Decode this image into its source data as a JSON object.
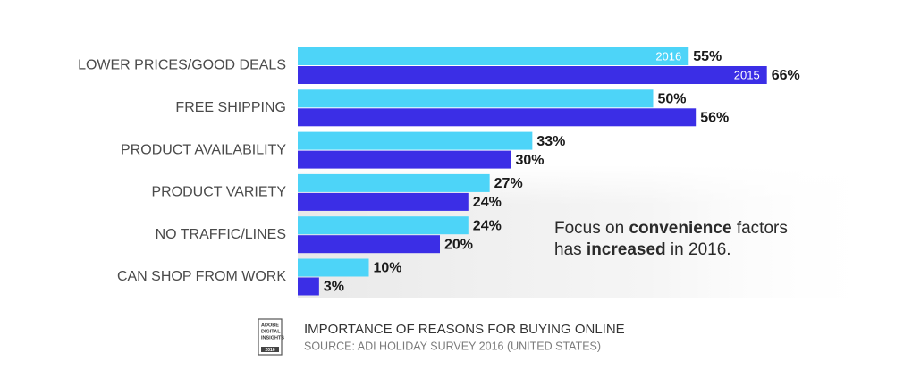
{
  "chart_data": {
    "type": "bar",
    "orientation": "horizontal",
    "categories": [
      "LOWER PRICES/GOOD DEALS",
      "FREE SHIPPING",
      "PRODUCT AVAILABILITY",
      "PRODUCT VARIETY",
      "NO TRAFFIC/LINES",
      "CAN SHOP FROM WORK"
    ],
    "series": [
      {
        "name": "2016",
        "color": "#4dd4f8",
        "values": [
          55,
          50,
          33,
          27,
          24,
          10
        ],
        "value_labels": [
          "55%",
          "50%",
          "33%",
          "27%",
          "24%",
          "10%"
        ]
      },
      {
        "name": "2015",
        "color": "#3b2ee6",
        "values": [
          66,
          56,
          30,
          24,
          20,
          3
        ],
        "value_labels": [
          "66%",
          "56%",
          "30%",
          "24%",
          "20%",
          "3%"
        ]
      }
    ],
    "annotation": [
      [
        "Focus on ",
        "convenience",
        " factors"
      ],
      [
        "has ",
        "increased",
        " in 2016."
      ]
    ],
    "title": "IMPORTANCE OF REASONS FOR BUYING ONLINE",
    "source": "SOURCE: ADI HOLIDAY SURVEY 2016 (UNITED STATES)",
    "badge": {
      "lines": [
        "ADOBE",
        "DIGITAL",
        "INSIGHTS"
      ],
      "year": "2016"
    }
  }
}
